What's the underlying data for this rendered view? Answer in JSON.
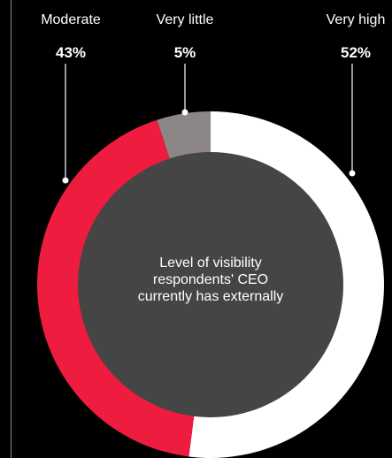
{
  "chart_data": {
    "type": "pie",
    "variant": "donut",
    "center_label": "Level of visibility respondents' CEO currently has externally",
    "slices": [
      {
        "name": "Very high",
        "value": 52,
        "value_label": "52%",
        "color": "#ffffff"
      },
      {
        "name": "Moderate",
        "value": 43,
        "value_label": "43%",
        "color": "#ee1c3f"
      },
      {
        "name": "Very little",
        "value": 5,
        "value_label": "5%",
        "color": "#8c8786"
      }
    ],
    "start": "top, clockwise",
    "legend": "labels above chart with leader lines"
  },
  "colors": {
    "background": "#000000",
    "center": "#464545",
    "leader": "#ffffff",
    "label_text": "#ffffff"
  }
}
